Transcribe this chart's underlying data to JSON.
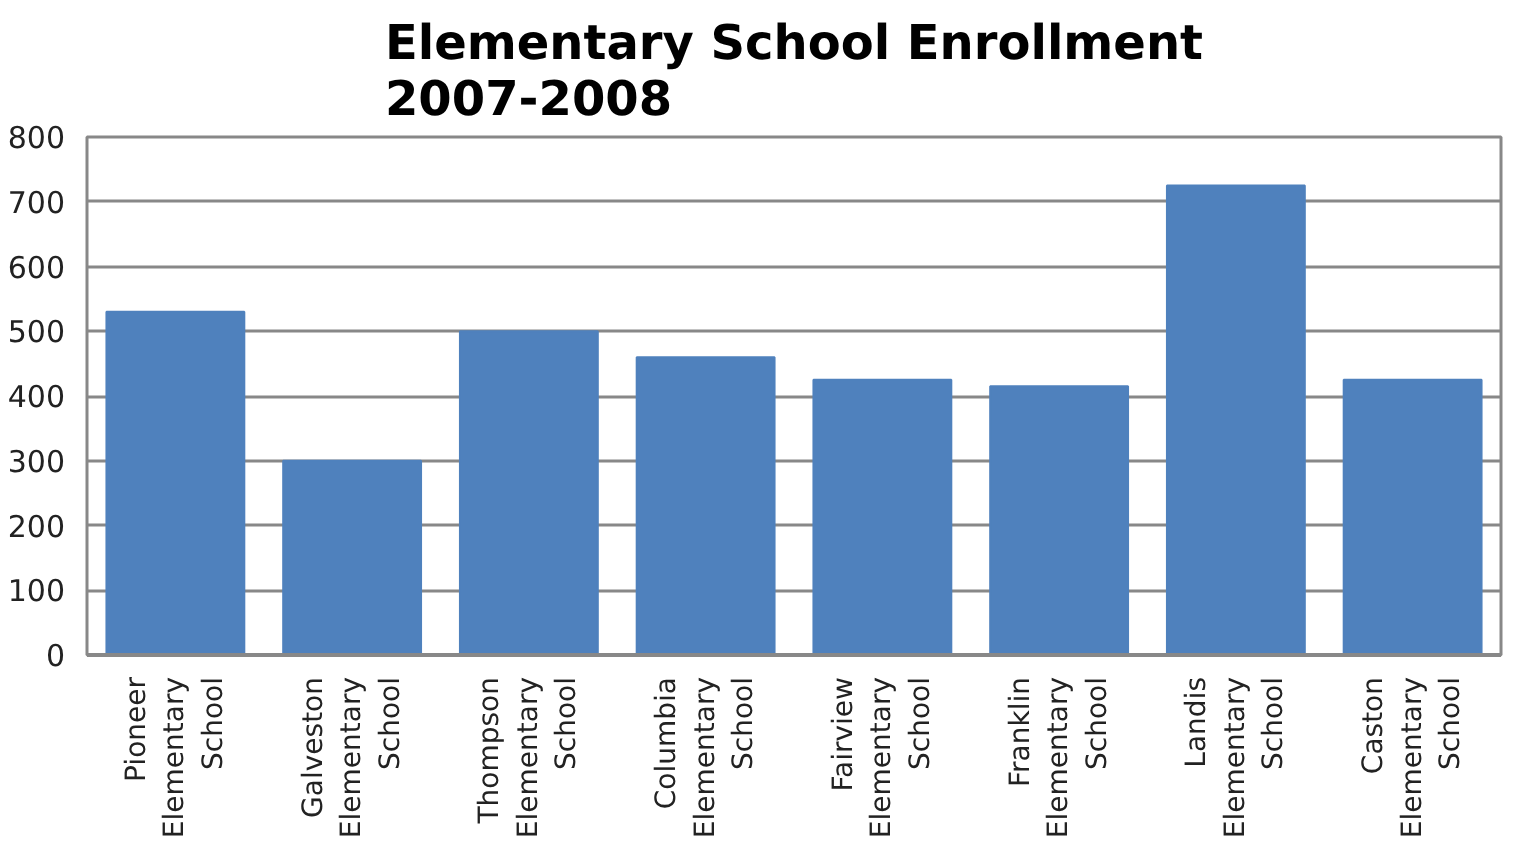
{
  "chart_data": {
    "type": "bar",
    "title": "Elementary School Enrollment 2007-2008",
    "categories": [
      "Pioneer Elementary School",
      "Galveston Elementary School",
      "Thompson Elementary School",
      "Columbia Elementary School",
      "Fairview Elementary School",
      "Franklin Elementary School",
      "Landis Elementary School",
      "Caston Elementary School"
    ],
    "values": [
      530,
      300,
      500,
      460,
      425,
      415,
      725,
      425
    ],
    "color": "#4f81bd",
    "ylim": [
      0,
      800
    ],
    "yticks": [
      0,
      100,
      200,
      300,
      400,
      500,
      600,
      700,
      800
    ],
    "grid": "y"
  }
}
